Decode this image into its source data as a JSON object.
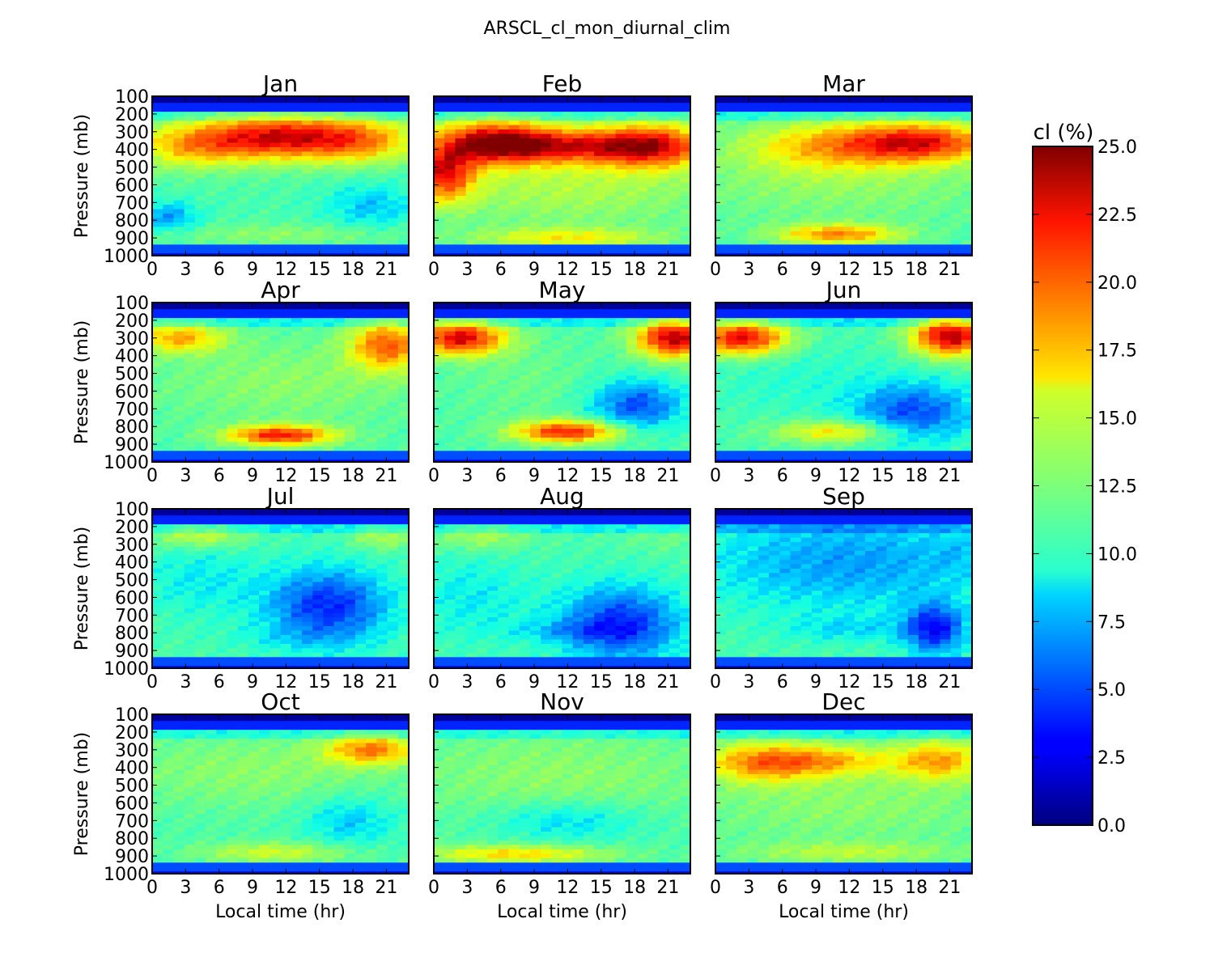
{
  "chart_data": {
    "type": "heatmap",
    "title": "ARSCL_cl_mon_diurnal_clim",
    "ylabel": "Pressure (mb)",
    "xlabel": "Local time (hr)",
    "x_ticks": [
      0,
      3,
      6,
      9,
      12,
      15,
      18,
      21
    ],
    "y_ticks": [
      100,
      200,
      300,
      400,
      500,
      600,
      700,
      800,
      900,
      1000
    ],
    "xlim": [
      0,
      23
    ],
    "ylim": [
      100,
      1000
    ],
    "y_inverted": true,
    "grid": false,
    "colormap": "jet",
    "colorbar": {
      "label": "cl (%)",
      "range": [
        0.0,
        25.0
      ],
      "ticks": [
        "0.0",
        "2.5",
        "5.0",
        "7.5",
        "10.0",
        "12.5",
        "15.0",
        "17.5",
        "20.0",
        "22.5",
        "25.0"
      ],
      "position": "right"
    },
    "panels": [
      {
        "month": "Jan",
        "features": [
          {
            "t": 11,
            "p": 330,
            "st": 5,
            "sp": 90,
            "v": 22
          },
          {
            "t": 3,
            "p": 380,
            "st": 4,
            "sp": 90,
            "v": 17
          },
          {
            "t": 19,
            "p": 350,
            "st": 4,
            "sp": 90,
            "v": 18
          },
          {
            "t": 12,
            "p": 880,
            "st": 8,
            "sp": 40,
            "v": 13
          },
          {
            "t": 20,
            "p": 720,
            "st": 3,
            "sp": 90,
            "v": 8
          },
          {
            "t": 1,
            "p": 780,
            "st": 2,
            "sp": 60,
            "v": 7
          },
          {
            "t": 13,
            "p": 600,
            "st": 8,
            "sp": 150,
            "v": 11
          }
        ]
      },
      {
        "month": "Feb",
        "features": [
          {
            "t": 5,
            "p": 360,
            "st": 4,
            "sp": 90,
            "v": 23
          },
          {
            "t": 0.5,
            "p": 540,
            "st": 2,
            "sp": 110,
            "v": 21
          },
          {
            "t": 20,
            "p": 380,
            "st": 4,
            "sp": 90,
            "v": 22
          },
          {
            "t": 12,
            "p": 380,
            "st": 5,
            "sp": 70,
            "v": 19
          },
          {
            "t": 12,
            "p": 900,
            "st": 6,
            "sp": 40,
            "v": 16
          },
          {
            "t": 12,
            "p": 620,
            "st": 10,
            "sp": 150,
            "v": 14
          }
        ]
      },
      {
        "month": "Mar",
        "features": [
          {
            "t": 19,
            "p": 360,
            "st": 5,
            "sp": 80,
            "v": 21
          },
          {
            "t": 10,
            "p": 380,
            "st": 6,
            "sp": 100,
            "v": 17
          },
          {
            "t": 11,
            "p": 880,
            "st": 4,
            "sp": 40,
            "v": 19
          },
          {
            "t": 11,
            "p": 600,
            "st": 11,
            "sp": 150,
            "v": 13
          }
        ]
      },
      {
        "month": "Apr",
        "features": [
          {
            "t": 2,
            "p": 300,
            "st": 3,
            "sp": 60,
            "v": 18
          },
          {
            "t": 21.5,
            "p": 340,
            "st": 2.5,
            "sp": 100,
            "v": 20
          },
          {
            "t": 11.5,
            "p": 850,
            "st": 3.5,
            "sp": 40,
            "v": 22
          },
          {
            "t": 12,
            "p": 550,
            "st": 9,
            "sp": 170,
            "v": 13
          }
        ]
      },
      {
        "month": "May",
        "features": [
          {
            "t": 2,
            "p": 300,
            "st": 3,
            "sp": 70,
            "v": 23
          },
          {
            "t": 22,
            "p": 300,
            "st": 2.5,
            "sp": 80,
            "v": 24
          },
          {
            "t": 12,
            "p": 830,
            "st": 3.5,
            "sp": 45,
            "v": 22
          },
          {
            "t": 8,
            "p": 550,
            "st": 5,
            "sp": 170,
            "v": 12
          },
          {
            "t": 18.5,
            "p": 680,
            "st": 3,
            "sp": 100,
            "v": 5
          }
        ]
      },
      {
        "month": "Jun",
        "features": [
          {
            "t": 2,
            "p": 300,
            "st": 3,
            "sp": 70,
            "v": 23
          },
          {
            "t": 21.5,
            "p": 290,
            "st": 2.5,
            "sp": 80,
            "v": 24
          },
          {
            "t": 11,
            "p": 830,
            "st": 4,
            "sp": 45,
            "v": 17
          },
          {
            "t": 7,
            "p": 520,
            "st": 6,
            "sp": 150,
            "v": 10
          },
          {
            "t": 18,
            "p": 720,
            "st": 4,
            "sp": 120,
            "v": 5
          }
        ]
      },
      {
        "month": "Jul",
        "features": [
          {
            "t": 4,
            "p": 250,
            "st": 3,
            "sp": 50,
            "v": 15
          },
          {
            "t": 21,
            "p": 260,
            "st": 2,
            "sp": 50,
            "v": 14
          },
          {
            "t": 12,
            "p": 830,
            "st": 4,
            "sp": 45,
            "v": 10
          },
          {
            "t": 4,
            "p": 500,
            "st": 4,
            "sp": 150,
            "v": 9
          },
          {
            "t": 16,
            "p": 650,
            "st": 4,
            "sp": 150,
            "v": 4
          }
        ]
      },
      {
        "month": "Aug",
        "features": [
          {
            "t": 4,
            "p": 250,
            "st": 3,
            "sp": 60,
            "v": 14
          },
          {
            "t": 21,
            "p": 260,
            "st": 3,
            "sp": 60,
            "v": 12
          },
          {
            "t": 12,
            "p": 790,
            "st": 4,
            "sp": 40,
            "v": 9
          },
          {
            "t": 3,
            "p": 600,
            "st": 4,
            "sp": 170,
            "v": 9
          },
          {
            "t": 17,
            "p": 750,
            "st": 4,
            "sp": 150,
            "v": 4
          }
        ]
      },
      {
        "month": "Sep",
        "features": [
          {
            "t": 12,
            "p": 400,
            "st": 10,
            "sp": 200,
            "v": 7
          },
          {
            "t": 12,
            "p": 780,
            "st": 4,
            "sp": 50,
            "v": 9
          },
          {
            "t": 22,
            "p": 350,
            "st": 1.5,
            "sp": 80,
            "v": 10
          },
          {
            "t": 20,
            "p": 780,
            "st": 2,
            "sp": 100,
            "v": 3.5
          }
        ]
      },
      {
        "month": "Oct",
        "features": [
          {
            "t": 20,
            "p": 300,
            "st": 3,
            "sp": 60,
            "v": 19
          },
          {
            "t": 11,
            "p": 880,
            "st": 5,
            "sp": 40,
            "v": 15
          },
          {
            "t": 9,
            "p": 420,
            "st": 10,
            "sp": 150,
            "v": 13
          },
          {
            "t": 18,
            "p": 700,
            "st": 3,
            "sp": 100,
            "v": 8
          }
        ]
      },
      {
        "month": "Nov",
        "features": [
          {
            "t": 7,
            "p": 890,
            "st": 6,
            "sp": 35,
            "v": 17
          },
          {
            "t": 11,
            "p": 450,
            "st": 11,
            "sp": 200,
            "v": 13
          },
          {
            "t": 12,
            "p": 700,
            "st": 5,
            "sp": 80,
            "v": 8
          }
        ]
      },
      {
        "month": "Dec",
        "features": [
          {
            "t": 4,
            "p": 370,
            "st": 4,
            "sp": 80,
            "v": 19
          },
          {
            "t": 20.5,
            "p": 360,
            "st": 3,
            "sp": 80,
            "v": 18
          },
          {
            "t": 11,
            "p": 360,
            "st": 4,
            "sp": 60,
            "v": 16
          },
          {
            "t": 12,
            "p": 600,
            "st": 11,
            "sp": 170,
            "v": 13
          },
          {
            "t": 12,
            "p": 880,
            "st": 7,
            "sp": 40,
            "v": 14
          }
        ]
      }
    ]
  }
}
